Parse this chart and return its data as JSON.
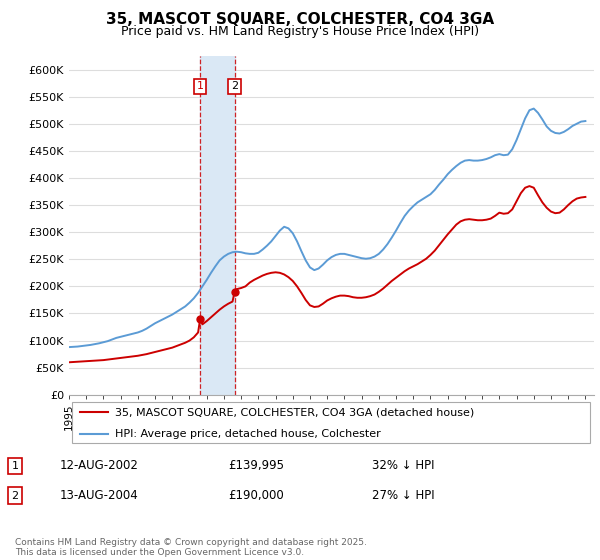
{
  "title": "35, MASCOT SQUARE, COLCHESTER, CO4 3GA",
  "subtitle": "Price paid vs. HM Land Registry's House Price Index (HPI)",
  "ylabel_ticks": [
    "£0",
    "£50K",
    "£100K",
    "£150K",
    "£200K",
    "£250K",
    "£300K",
    "£350K",
    "£400K",
    "£450K",
    "£500K",
    "£550K",
    "£600K"
  ],
  "ytick_vals": [
    0,
    50000,
    100000,
    150000,
    200000,
    250000,
    300000,
    350000,
    400000,
    450000,
    500000,
    550000,
    600000
  ],
  "ylim": [
    0,
    625000
  ],
  "xlim_start": 1995.0,
  "xlim_end": 2025.5,
  "legend_line1": "35, MASCOT SQUARE, COLCHESTER, CO4 3GA (detached house)",
  "legend_line2": "HPI: Average price, detached house, Colchester",
  "transaction1_date": "12-AUG-2002",
  "transaction1_price": "£139,995",
  "transaction1_hpi": "32% ↓ HPI",
  "transaction2_date": "13-AUG-2004",
  "transaction2_price": "£190,000",
  "transaction2_hpi": "27% ↓ HPI",
  "footer": "Contains HM Land Registry data © Crown copyright and database right 2025.\nThis data is licensed under the Open Government Licence v3.0.",
  "red_color": "#cc0000",
  "blue_color": "#5b9bd5",
  "shaded_color": "#dae8f5",
  "grid_color": "#dddddd",
  "t1_x": 2002.62,
  "t2_x": 2004.62,
  "t1_y": 139995,
  "t2_y": 190000
}
